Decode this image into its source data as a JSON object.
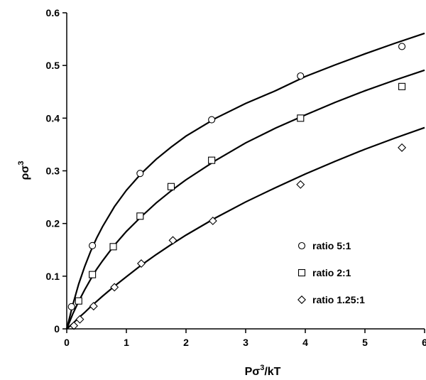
{
  "chart_data": {
    "type": "scatter",
    "title": "",
    "xlabel_base": "Pσ",
    "xlabel_sup": "3",
    "xlabel_tail": "/kT",
    "ylabel_base": "ρσ",
    "ylabel_sup": "3",
    "xlim": [
      0,
      6
    ],
    "ylim": [
      0,
      0.6
    ],
    "xticks": [
      "0",
      "1",
      "2",
      "3",
      "4",
      "5",
      "6"
    ],
    "yticks": [
      "0",
      "0.1",
      "0.2",
      "0.3",
      "0.4",
      "0.5",
      "0.6"
    ],
    "legend_position": "bottom-right",
    "series": [
      {
        "name": "ratio 5:1",
        "marker": "circle",
        "points": [
          [
            0.08,
            0.042
          ],
          [
            0.43,
            0.158
          ],
          [
            1.23,
            0.295
          ],
          [
            2.43,
            0.397
          ],
          [
            3.92,
            0.48
          ],
          [
            5.62,
            0.536
          ]
        ],
        "curve": [
          [
            0,
            0
          ],
          [
            0.1,
            0.045
          ],
          [
            0.2,
            0.085
          ],
          [
            0.3,
            0.118
          ],
          [
            0.4,
            0.147
          ],
          [
            0.5,
            0.172
          ],
          [
            0.6,
            0.194
          ],
          [
            0.8,
            0.232
          ],
          [
            1.0,
            0.263
          ],
          [
            1.25,
            0.295
          ],
          [
            1.5,
            0.322
          ],
          [
            1.75,
            0.345
          ],
          [
            2.0,
            0.366
          ],
          [
            2.5,
            0.4
          ],
          [
            3.0,
            0.428
          ],
          [
            3.5,
            0.452
          ],
          [
            4.0,
            0.479
          ],
          [
            4.5,
            0.501
          ],
          [
            5.0,
            0.522
          ],
          [
            5.5,
            0.542
          ],
          [
            6.0,
            0.561
          ]
        ]
      },
      {
        "name": "ratio 2:1",
        "marker": "square",
        "points": [
          [
            0.2,
            0.053
          ],
          [
            0.43,
            0.103
          ],
          [
            0.78,
            0.156
          ],
          [
            1.23,
            0.214
          ],
          [
            1.75,
            0.27
          ],
          [
            2.43,
            0.32
          ],
          [
            3.92,
            0.4
          ],
          [
            5.62,
            0.46
          ]
        ],
        "curve": [
          [
            0,
            0
          ],
          [
            0.1,
            0.028
          ],
          [
            0.2,
            0.052
          ],
          [
            0.3,
            0.074
          ],
          [
            0.4,
            0.094
          ],
          [
            0.5,
            0.113
          ],
          [
            0.6,
            0.129
          ],
          [
            0.8,
            0.159
          ],
          [
            1.0,
            0.185
          ],
          [
            1.25,
            0.213
          ],
          [
            1.5,
            0.239
          ],
          [
            1.75,
            0.262
          ],
          [
            2.0,
            0.283
          ],
          [
            2.5,
            0.32
          ],
          [
            3.0,
            0.353
          ],
          [
            3.5,
            0.381
          ],
          [
            4.0,
            0.406
          ],
          [
            4.5,
            0.43
          ],
          [
            5.0,
            0.452
          ],
          [
            5.5,
            0.472
          ],
          [
            6.0,
            0.491
          ]
        ]
      },
      {
        "name": "ratio 1.25:1",
        "marker": "diamond",
        "points": [
          [
            0.12,
            0.006
          ],
          [
            0.22,
            0.018
          ],
          [
            0.45,
            0.043
          ],
          [
            0.8,
            0.079
          ],
          [
            1.25,
            0.124
          ],
          [
            1.78,
            0.168
          ],
          [
            2.45,
            0.205
          ],
          [
            3.92,
            0.274
          ],
          [
            5.62,
            0.344
          ]
        ],
        "curve": [
          [
            0,
            0
          ],
          [
            0.1,
            0.01
          ],
          [
            0.2,
            0.021
          ],
          [
            0.3,
            0.031
          ],
          [
            0.4,
            0.042
          ],
          [
            0.5,
            0.052
          ],
          [
            0.6,
            0.062
          ],
          [
            0.8,
            0.081
          ],
          [
            1.0,
            0.099
          ],
          [
            1.25,
            0.121
          ],
          [
            1.5,
            0.141
          ],
          [
            1.75,
            0.16
          ],
          [
            2.0,
            0.178
          ],
          [
            2.5,
            0.211
          ],
          [
            3.0,
            0.241
          ],
          [
            3.5,
            0.268
          ],
          [
            4.0,
            0.294
          ],
          [
            4.5,
            0.318
          ],
          [
            5.0,
            0.341
          ],
          [
            5.5,
            0.362
          ],
          [
            6.0,
            0.382
          ]
        ]
      }
    ]
  }
}
